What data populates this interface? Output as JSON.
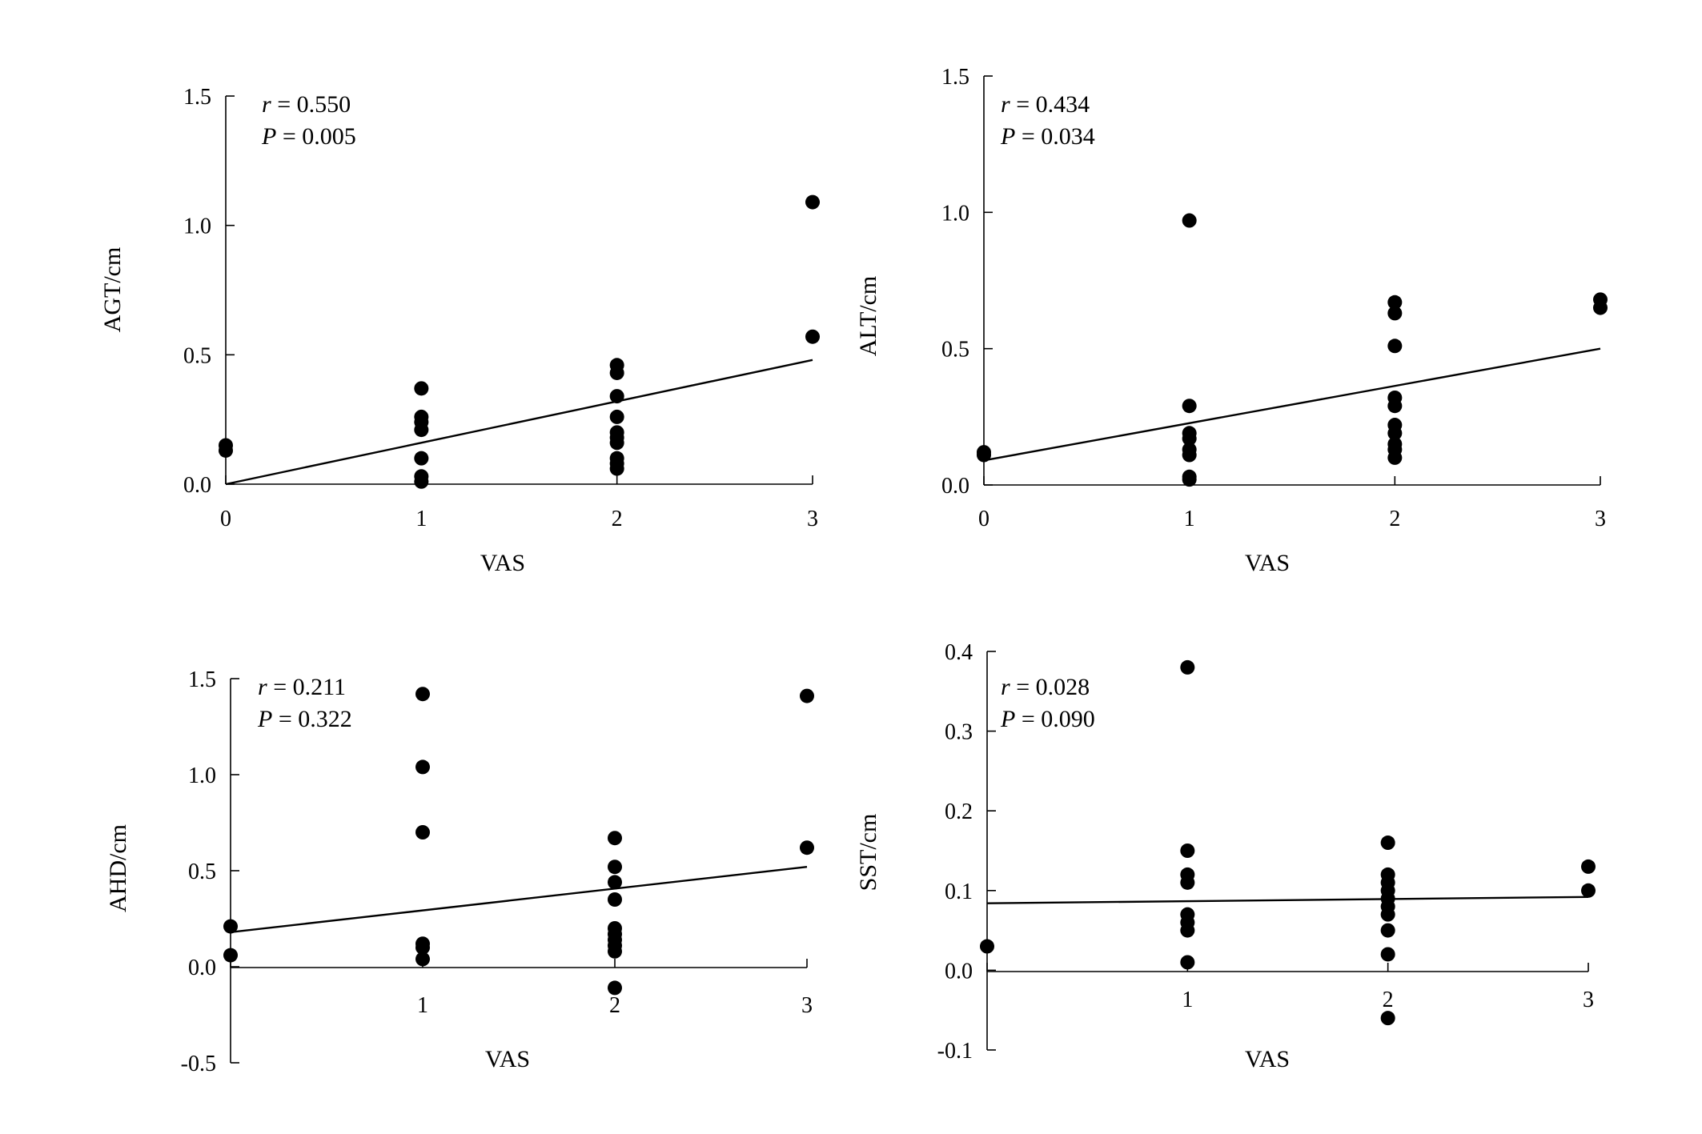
{
  "chart_data": [
    {
      "type": "scatter",
      "xlabel": "VAS",
      "ylabel": "AGT/cm",
      "r_label": "r",
      "r_value": " = 0.550",
      "p_label": "P",
      "p_value": " = 0.005",
      "xlim": [
        0,
        3
      ],
      "ylim": [
        0,
        1.5
      ],
      "x_ticks": [
        "0",
        "1",
        "2",
        "3"
      ],
      "y_ticks": [
        "0.0",
        "0.5",
        "1.0",
        "1.5"
      ],
      "points": [
        {
          "x": 0,
          "y": 0.15
        },
        {
          "x": 0,
          "y": 0.13
        },
        {
          "x": 1,
          "y": 0.37
        },
        {
          "x": 1,
          "y": 0.26
        },
        {
          "x": 1,
          "y": 0.24
        },
        {
          "x": 1,
          "y": 0.21
        },
        {
          "x": 1,
          "y": 0.1
        },
        {
          "x": 1,
          "y": 0.03
        },
        {
          "x": 1,
          "y": 0.01
        },
        {
          "x": 2,
          "y": 0.46
        },
        {
          "x": 2,
          "y": 0.43
        },
        {
          "x": 2,
          "y": 0.34
        },
        {
          "x": 2,
          "y": 0.26
        },
        {
          "x": 2,
          "y": 0.2
        },
        {
          "x": 2,
          "y": 0.18
        },
        {
          "x": 2,
          "y": 0.16
        },
        {
          "x": 2,
          "y": 0.1
        },
        {
          "x": 2,
          "y": 0.08
        },
        {
          "x": 2,
          "y": 0.06
        },
        {
          "x": 3,
          "y": 1.09
        },
        {
          "x": 3,
          "y": 0.57
        }
      ],
      "fit": {
        "x": [
          0,
          3
        ],
        "y": [
          0.0,
          0.48
        ]
      }
    },
    {
      "type": "scatter",
      "xlabel": "VAS",
      "ylabel": "ALT/cm",
      "r_label": "r",
      "r_value": " = 0.434",
      "p_label": "P",
      "p_value": " = 0.034",
      "xlim": [
        0,
        3
      ],
      "ylim": [
        0,
        1.5
      ],
      "x_ticks": [
        "0",
        "1",
        "2",
        "3"
      ],
      "y_ticks": [
        "0.0",
        "0.5",
        "1.0",
        "1.5"
      ],
      "points": [
        {
          "x": 0,
          "y": 0.12
        },
        {
          "x": 0,
          "y": 0.11
        },
        {
          "x": 1,
          "y": 0.97
        },
        {
          "x": 1,
          "y": 0.29
        },
        {
          "x": 1,
          "y": 0.19
        },
        {
          "x": 1,
          "y": 0.17
        },
        {
          "x": 1,
          "y": 0.13
        },
        {
          "x": 1,
          "y": 0.11
        },
        {
          "x": 1,
          "y": 0.03
        },
        {
          "x": 1,
          "y": 0.02
        },
        {
          "x": 2,
          "y": 0.67
        },
        {
          "x": 2,
          "y": 0.63
        },
        {
          "x": 2,
          "y": 0.51
        },
        {
          "x": 2,
          "y": 0.32
        },
        {
          "x": 2,
          "y": 0.29
        },
        {
          "x": 2,
          "y": 0.22
        },
        {
          "x": 2,
          "y": 0.19
        },
        {
          "x": 2,
          "y": 0.15
        },
        {
          "x": 2,
          "y": 0.13
        },
        {
          "x": 2,
          "y": 0.1
        },
        {
          "x": 3,
          "y": 0.68
        },
        {
          "x": 3,
          "y": 0.65
        }
      ],
      "fit": {
        "x": [
          0,
          3
        ],
        "y": [
          0.09,
          0.5
        ]
      }
    },
    {
      "type": "scatter",
      "xlabel": "VAS",
      "ylabel": "AHD/cm",
      "r_label": "r",
      "r_value": " = 0.211",
      "p_label": "P",
      "p_value": " = 0.322",
      "xlim": [
        0,
        3
      ],
      "ylim": [
        -0.5,
        1.5
      ],
      "x_ticks": [
        "",
        "1",
        "2",
        "3"
      ],
      "y_ticks": [
        "-0.5",
        "0.0",
        "0.5",
        "1.0",
        "1.5"
      ],
      "points": [
        {
          "x": 0,
          "y": 0.21
        },
        {
          "x": 0,
          "y": 0.06
        },
        {
          "x": 1,
          "y": 1.42
        },
        {
          "x": 1,
          "y": 1.04
        },
        {
          "x": 1,
          "y": 0.7
        },
        {
          "x": 1,
          "y": 0.12
        },
        {
          "x": 1,
          "y": 0.1
        },
        {
          "x": 1,
          "y": 0.04
        },
        {
          "x": 2,
          "y": 0.67
        },
        {
          "x": 2,
          "y": 0.52
        },
        {
          "x": 2,
          "y": 0.44
        },
        {
          "x": 2,
          "y": 0.35
        },
        {
          "x": 2,
          "y": 0.2
        },
        {
          "x": 2,
          "y": 0.17
        },
        {
          "x": 2,
          "y": 0.14
        },
        {
          "x": 2,
          "y": 0.11
        },
        {
          "x": 2,
          "y": 0.08
        },
        {
          "x": 2,
          "y": -0.11
        },
        {
          "x": 3,
          "y": 1.41
        },
        {
          "x": 3,
          "y": 0.62
        }
      ],
      "fit": {
        "x": [
          0,
          3
        ],
        "y": [
          0.18,
          0.52
        ]
      }
    },
    {
      "type": "scatter",
      "xlabel": "VAS",
      "ylabel": "SST/cm",
      "r_label": "r",
      "r_value": " = 0.028",
      "p_label": "P",
      "p_value": " = 0.090",
      "xlim": [
        0,
        3
      ],
      "ylim": [
        -0.1,
        0.4
      ],
      "x_ticks": [
        "",
        "1",
        "2",
        "3"
      ],
      "y_ticks": [
        "-0.1",
        "0.0",
        "0.1",
        "0.2",
        "0.3",
        "0.4"
      ],
      "points": [
        {
          "x": 0,
          "y": 0.03
        },
        {
          "x": 1,
          "y": 0.38
        },
        {
          "x": 1,
          "y": 0.15
        },
        {
          "x": 1,
          "y": 0.12
        },
        {
          "x": 1,
          "y": 0.11
        },
        {
          "x": 1,
          "y": 0.07
        },
        {
          "x": 1,
          "y": 0.06
        },
        {
          "x": 1,
          "y": 0.05
        },
        {
          "x": 1,
          "y": 0.01
        },
        {
          "x": 2,
          "y": 0.16
        },
        {
          "x": 2,
          "y": 0.12
        },
        {
          "x": 2,
          "y": 0.11
        },
        {
          "x": 2,
          "y": 0.1
        },
        {
          "x": 2,
          "y": 0.09
        },
        {
          "x": 2,
          "y": 0.08
        },
        {
          "x": 2,
          "y": 0.07
        },
        {
          "x": 2,
          "y": 0.05
        },
        {
          "x": 2,
          "y": 0.02
        },
        {
          "x": 2,
          "y": -0.06
        },
        {
          "x": 3,
          "y": 0.13
        },
        {
          "x": 3,
          "y": 0.1
        }
      ],
      "fit": {
        "x": [
          0,
          3
        ],
        "y": [
          0.084,
          0.092
        ]
      }
    }
  ]
}
